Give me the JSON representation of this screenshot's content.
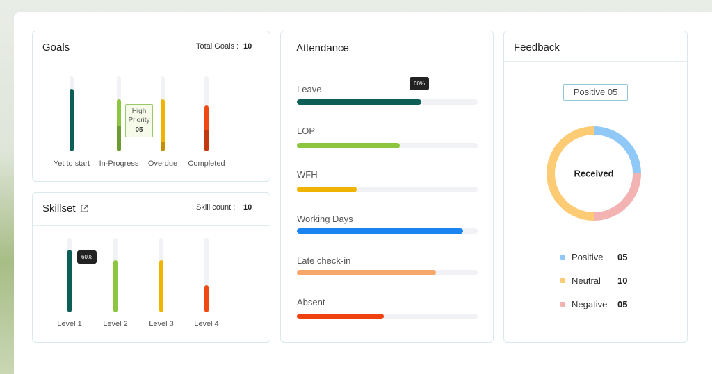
{
  "goals": {
    "title": "Goals",
    "total_label": "Total Goals :",
    "total": "10",
    "tooltip": {
      "text": "High Priority",
      "value": "05"
    },
    "ylim": [
      0,
      100
    ],
    "items": [
      {
        "label": "Yet to start",
        "value": 83,
        "color": "#0e5e58"
      },
      {
        "label": "In-Progress",
        "value": 69,
        "part": 33,
        "color": "#8cc63f",
        "part_color": "#6c9c30"
      },
      {
        "label": "Overdue",
        "value": 69,
        "part": 13,
        "color": "#f0b400",
        "part_color": "#c58f00"
      },
      {
        "label": "Completed",
        "value": 61,
        "part": 28,
        "color": "#f04a14",
        "part_color": "#c2390f"
      }
    ]
  },
  "skillset": {
    "title": "Skillset",
    "count_label": "Skill count :",
    "count": "10",
    "tooltip": "60%",
    "ylim": [
      0,
      100
    ],
    "items": [
      {
        "label": "Level 1",
        "value": 84,
        "color": "#0e5e58"
      },
      {
        "label": "Level 2",
        "value": 70,
        "color": "#8cc63f"
      },
      {
        "label": "Level 3",
        "value": 70,
        "color": "#f0b400"
      },
      {
        "label": "Level 4",
        "value": 36,
        "color": "#f04a14"
      }
    ]
  },
  "attendance": {
    "title": "Attendance",
    "tooltip": "60%",
    "xlim": [
      0,
      100
    ],
    "items": [
      {
        "label": "Leave",
        "value": 69,
        "color": "#0e5e58"
      },
      {
        "label": "LOP",
        "value": 57,
        "color": "#8cc63f"
      },
      {
        "label": "WFH",
        "value": 33,
        "color": "#f0b400"
      },
      {
        "label": "Working Days",
        "value": 92,
        "color": "#1a85f0"
      },
      {
        "label": "Late check-in",
        "value": 77,
        "color": "#f7a76a"
      },
      {
        "label": "Absent",
        "value": 48,
        "color": "#f0420f"
      }
    ]
  },
  "feedback": {
    "title": "Feedback",
    "badge": "Positive 05",
    "center": "Received",
    "items": [
      {
        "name": "Positive",
        "value": 5,
        "label": "05",
        "color": "#90c8f8"
      },
      {
        "name": "Neutral",
        "value": 10,
        "label": "10",
        "color": "#fdcb73"
      },
      {
        "name": "Negative",
        "value": 5,
        "label": "05",
        "color": "#f4b3b3"
      }
    ]
  }
}
